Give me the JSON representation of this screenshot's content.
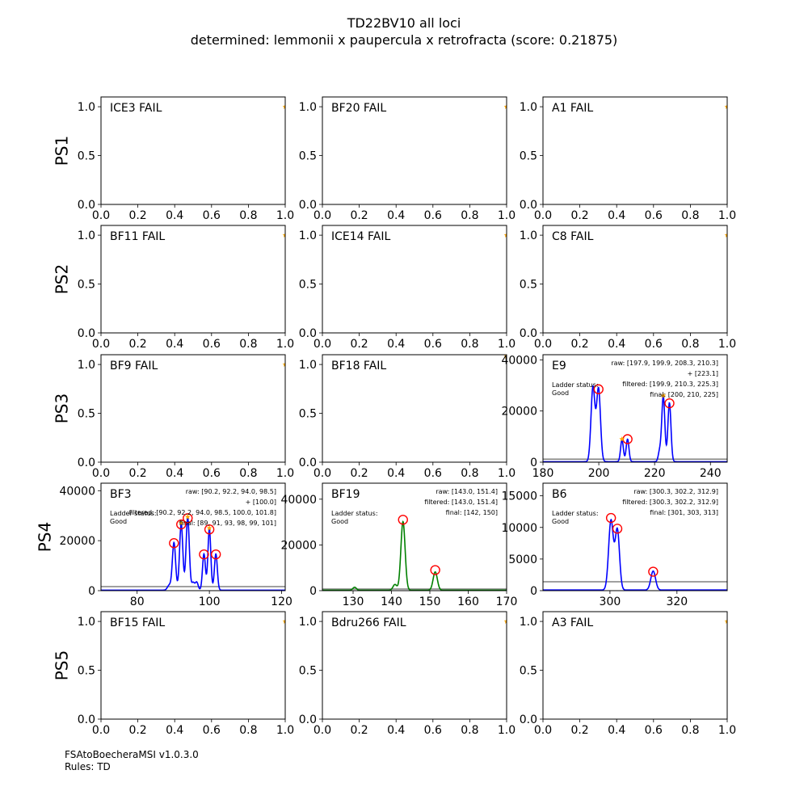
{
  "figure": {
    "title_line1": "TD22BV10 all loci",
    "title_line2": "determined: lemmonii x paupercula x retrofracta (score: 0.21875)",
    "footer_line1": "FSAtoBoecheraMSI v1.0.3.0",
    "footer_line2": "Rules: TD",
    "row_labels": [
      "PS1",
      "PS2",
      "PS3",
      "PS4",
      "PS5"
    ]
  },
  "colors": {
    "trace_blue": "#0000ff",
    "trace_green": "#008000",
    "threshold_gray": "#808080",
    "peak_marker": "#ff0000",
    "star": "#ffa500"
  },
  "chart_data": [
    {
      "type": "line",
      "row": 0,
      "col": 0,
      "title": "ICE3 FAIL",
      "status": "fail",
      "xlim": [
        0,
        1
      ],
      "ylim": [
        0,
        1.1
      ],
      "xticks": [
        "0.0",
        "0.2",
        "0.4",
        "0.6",
        "0.8",
        "1.0"
      ],
      "yticks": [
        "0.0",
        "0.5",
        "1.0"
      ],
      "star": {
        "x": 1.0,
        "y": 1.0
      }
    },
    {
      "type": "line",
      "row": 0,
      "col": 1,
      "title": "BF20 FAIL",
      "status": "fail",
      "xlim": [
        0,
        1
      ],
      "ylim": [
        0,
        1.1
      ],
      "xticks": [
        "0.0",
        "0.2",
        "0.4",
        "0.6",
        "0.8",
        "1.0"
      ],
      "yticks": [
        "0.0",
        "0.5",
        "1.0"
      ],
      "star": {
        "x": 1.0,
        "y": 1.0
      }
    },
    {
      "type": "line",
      "row": 0,
      "col": 2,
      "title": "A1 FAIL",
      "status": "fail",
      "xlim": [
        0,
        1
      ],
      "ylim": [
        0,
        1.1
      ],
      "xticks": [
        "0.0",
        "0.2",
        "0.4",
        "0.6",
        "0.8",
        "1.0"
      ],
      "yticks": [
        "0.0",
        "0.5",
        "1.0"
      ],
      "star": {
        "x": 1.0,
        "y": 1.0
      }
    },
    {
      "type": "line",
      "row": 1,
      "col": 0,
      "title": "BF11 FAIL",
      "status": "fail",
      "xlim": [
        0,
        1
      ],
      "ylim": [
        0,
        1.1
      ],
      "xticks": [
        "0.0",
        "0.2",
        "0.4",
        "0.6",
        "0.8",
        "1.0"
      ],
      "yticks": [
        "0.0",
        "0.5",
        "1.0"
      ],
      "star": {
        "x": 1.0,
        "y": 1.0
      }
    },
    {
      "type": "line",
      "row": 1,
      "col": 1,
      "title": "ICE14 FAIL",
      "status": "fail",
      "xlim": [
        0,
        1
      ],
      "ylim": [
        0,
        1.1
      ],
      "xticks": [
        "0.0",
        "0.2",
        "0.4",
        "0.6",
        "0.8",
        "1.0"
      ],
      "yticks": [
        "0.0",
        "0.5",
        "1.0"
      ],
      "star": {
        "x": 1.0,
        "y": 1.0
      }
    },
    {
      "type": "line",
      "row": 1,
      "col": 2,
      "title": "C8 FAIL",
      "status": "fail",
      "xlim": [
        0,
        1
      ],
      "ylim": [
        0,
        1.1
      ],
      "xticks": [
        "0.0",
        "0.2",
        "0.4",
        "0.6",
        "0.8",
        "1.0"
      ],
      "yticks": [
        "0.0",
        "0.5",
        "1.0"
      ],
      "star": {
        "x": 1.0,
        "y": 1.0
      }
    },
    {
      "type": "line",
      "row": 2,
      "col": 0,
      "title": "BF9 FAIL",
      "status": "fail",
      "xlim": [
        0,
        1
      ],
      "ylim": [
        0,
        1.1
      ],
      "xticks": [
        "0.0",
        "0.2",
        "0.4",
        "0.6",
        "0.8",
        "1.0"
      ],
      "yticks": [
        "0.0",
        "0.5",
        "1.0"
      ],
      "star": {
        "x": 1.0,
        "y": 1.0
      }
    },
    {
      "type": "line",
      "row": 2,
      "col": 1,
      "title": "BF18 FAIL",
      "status": "fail",
      "xlim": [
        0,
        1
      ],
      "ylim": [
        0,
        1.1
      ],
      "xticks": [
        "0.0",
        "0.2",
        "0.4",
        "0.6",
        "0.8",
        "1.0"
      ],
      "yticks": [
        "0.0",
        "0.5",
        "1.0"
      ],
      "star": {
        "x": 1.0,
        "y": 1.1
      }
    },
    {
      "type": "line",
      "row": 2,
      "col": 2,
      "title": "E9",
      "status": "ok",
      "xlim": [
        180,
        246
      ],
      "ylim": [
        0,
        42000
      ],
      "xticks": [
        180,
        200,
        220,
        240
      ],
      "yticks": [
        0,
        20000,
        40000
      ],
      "trace_color": "blue",
      "baseline": 200,
      "threshold": 1200,
      "peaks": [
        {
          "x": 197.9,
          "y": 29000,
          "w": 0.7
        },
        {
          "x": 199.9,
          "y": 28500,
          "w": 0.7
        },
        {
          "x": 208.3,
          "y": 8500,
          "w": 0.5
        },
        {
          "x": 210.3,
          "y": 8800,
          "w": 0.5
        },
        {
          "x": 221.8,
          "y": 4000,
          "w": 0.5
        },
        {
          "x": 223.1,
          "y": 25500,
          "w": 0.55
        },
        {
          "x": 225.3,
          "y": 23000,
          "w": 0.55
        }
      ],
      "markers": [
        {
          "x": 199.9,
          "y": 28500
        },
        {
          "x": 210.3,
          "y": 9000
        },
        {
          "x": 225.3,
          "y": 23000
        }
      ],
      "stars": [
        {
          "x": 208.3,
          "y": 9000
        },
        {
          "x": 223.1,
          "y": 26000
        }
      ],
      "ladder": [
        "Ladder status:",
        "Good"
      ],
      "info": [
        "raw: [197.9, 199.9, 208.3, 210.3]",
        "+ [223.1]",
        "filtered: [199.9, 210.3, 225.3]",
        "final: [200, 210, 225]"
      ]
    },
    {
      "type": "line",
      "row": 3,
      "col": 0,
      "title": "BF3",
      "status": "ok",
      "xlim": [
        70,
        121
      ],
      "ylim": [
        0,
        43000
      ],
      "xticks": [
        80,
        100,
        120
      ],
      "yticks": [
        0,
        20000,
        40000
      ],
      "trace_color": "blue",
      "baseline": 200,
      "threshold": 1600,
      "peaks": [
        {
          "x": 88.9,
          "y": 2000,
          "w": 0.5
        },
        {
          "x": 90.2,
          "y": 19000,
          "w": 0.45
        },
        {
          "x": 92.2,
          "y": 26500,
          "w": 0.45
        },
        {
          "x": 94.0,
          "y": 29000,
          "w": 0.45
        },
        {
          "x": 95.5,
          "y": 3000,
          "w": 0.4
        },
        {
          "x": 96.5,
          "y": 3200,
          "w": 0.4
        },
        {
          "x": 98.5,
          "y": 14500,
          "w": 0.4
        },
        {
          "x": 100.0,
          "y": 24500,
          "w": 0.4
        },
        {
          "x": 101.8,
          "y": 14500,
          "w": 0.4
        }
      ],
      "markers": [
        {
          "x": 90.2,
          "y": 19000
        },
        {
          "x": 92.2,
          "y": 26500
        },
        {
          "x": 94.0,
          "y": 29000
        },
        {
          "x": 98.5,
          "y": 14500
        },
        {
          "x": 100.0,
          "y": 24500
        },
        {
          "x": 101.8,
          "y": 14500
        }
      ],
      "stars": [
        {
          "x": 92.2,
          "y": 27000
        },
        {
          "x": 94.0,
          "y": 29500
        },
        {
          "x": 100.0,
          "y": 25000
        }
      ],
      "ladder": [
        "Ladder status:",
        "Good"
      ],
      "info": [
        "raw: [90.2, 92.2, 94.0, 98.5]",
        "+ [100.0]",
        "filtered: [90.2, 92.2, 94.0, 98.5, 100.0, 101.8]",
        "final: [89, 91, 93, 98, 99, 101]"
      ]
    },
    {
      "type": "line",
      "row": 3,
      "col": 1,
      "title": "BF19",
      "status": "ok",
      "xlim": [
        122,
        170
      ],
      "ylim": [
        0,
        47000
      ],
      "xticks": [
        130,
        140,
        150,
        160,
        170
      ],
      "yticks": [
        0,
        20000,
        40000
      ],
      "trace_color": "green",
      "baseline": 200,
      "threshold": 700,
      "peaks": [
        {
          "x": 130.4,
          "y": 1300,
          "w": 0.45
        },
        {
          "x": 140.9,
          "y": 2500,
          "w": 0.5
        },
        {
          "x": 143.0,
          "y": 30000,
          "w": 0.55
        },
        {
          "x": 151.4,
          "y": 8000,
          "w": 0.55
        }
      ],
      "markers": [
        {
          "x": 143.0,
          "y": 31000
        },
        {
          "x": 151.4,
          "y": 9000
        }
      ],
      "stars": [],
      "ladder": [
        "Ladder status:",
        "Good"
      ],
      "info": [
        "raw: [143.0, 151.4]",
        "filtered: [143.0, 151.4]",
        "final: [142, 150]"
      ]
    },
    {
      "type": "line",
      "row": 3,
      "col": 2,
      "title": "B6",
      "status": "ok",
      "xlim": [
        280,
        335
      ],
      "ylim": [
        0,
        17000
      ],
      "xticks": [
        300,
        320
      ],
      "yticks": [
        0,
        5000,
        10000,
        15000
      ],
      "trace_color": "blue",
      "baseline": 100,
      "threshold": 1400,
      "peaks": [
        {
          "x": 300.3,
          "y": 11000,
          "w": 0.7
        },
        {
          "x": 302.2,
          "y": 9500,
          "w": 0.65
        },
        {
          "x": 312.9,
          "y": 3000,
          "w": 0.7
        }
      ],
      "markers": [
        {
          "x": 300.3,
          "y": 11500
        },
        {
          "x": 302.2,
          "y": 9800
        },
        {
          "x": 312.9,
          "y": 3000
        }
      ],
      "stars": [],
      "ladder": [
        "Ladder status:",
        "Good"
      ],
      "info": [
        "raw: [300.3, 302.2, 312.9]",
        "filtered: [300.3, 302.2, 312.9]",
        "final: [301, 303, 313]"
      ]
    },
    {
      "type": "line",
      "row": 4,
      "col": 0,
      "title": "BF15 FAIL",
      "status": "fail",
      "xlim": [
        0,
        1
      ],
      "ylim": [
        0,
        1.1
      ],
      "xticks": [
        "0.0",
        "0.2",
        "0.4",
        "0.6",
        "0.8",
        "1.0"
      ],
      "yticks": [
        "0.0",
        "0.5",
        "1.0"
      ],
      "star": {
        "x": 1.0,
        "y": 1.0
      }
    },
    {
      "type": "line",
      "row": 4,
      "col": 1,
      "title": "Bdru266 FAIL",
      "status": "fail",
      "xlim": [
        0,
        1
      ],
      "ylim": [
        0,
        1.1
      ],
      "xticks": [
        "0.0",
        "0.2",
        "0.4",
        "0.6",
        "0.8",
        "1.0"
      ],
      "yticks": [
        "0.0",
        "0.5",
        "1.0"
      ],
      "star": {
        "x": 1.0,
        "y": 1.0
      }
    },
    {
      "type": "line",
      "row": 4,
      "col": 2,
      "title": "A3 FAIL",
      "status": "fail",
      "xlim": [
        0,
        1
      ],
      "ylim": [
        0,
        1.1
      ],
      "xticks": [
        "0.0",
        "0.2",
        "0.4",
        "0.6",
        "0.8",
        "1.0"
      ],
      "yticks": [
        "0.0",
        "0.5",
        "1.0"
      ],
      "star": {
        "x": 1.0,
        "y": 1.0
      }
    }
  ]
}
